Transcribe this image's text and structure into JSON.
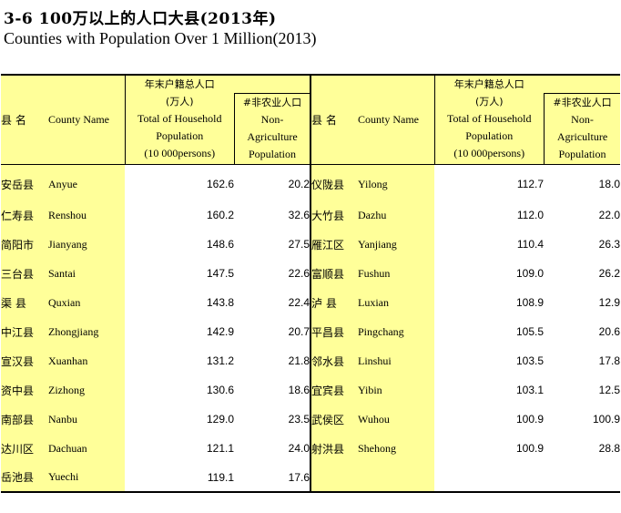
{
  "title": {
    "cn": "3-6  100万以上的人口大县(2013年)",
    "en": "Counties with Population Over 1 Million(2013)"
  },
  "header": {
    "county_cn": "县  名",
    "county_en": "County Name",
    "total_cn": "年末户籍总人口",
    "total_unit_cn": "(万人)",
    "total_en_1": "Total of Household",
    "total_en_2": "Population",
    "total_en_3": "(10 000persons)",
    "nonagri_cn": "#非农业人口",
    "nonagri_en_1": "Non-",
    "nonagri_en_2": "Agriculture",
    "nonagri_en_3": "Population"
  },
  "left_rows": [
    {
      "cn": "安岳县",
      "en": "Anyue",
      "total": "162.6",
      "nonagri": "20.2"
    },
    {
      "cn": "仁寿县",
      "en": "Renshou",
      "total": "160.2",
      "nonagri": "32.6"
    },
    {
      "cn": "简阳市",
      "en": "Jianyang",
      "total": "148.6",
      "nonagri": "27.5"
    },
    {
      "cn": "三台县",
      "en": "Santai",
      "total": "147.5",
      "nonagri": "22.6"
    },
    {
      "cn": "渠  县",
      "en": "Quxian",
      "total": "143.8",
      "nonagri": "22.4"
    },
    {
      "cn": "中江县",
      "en": "Zhongjiang",
      "total": "142.9",
      "nonagri": "20.7"
    },
    {
      "cn": "宣汉县",
      "en": "Xuanhan",
      "total": "131.2",
      "nonagri": "21.8"
    },
    {
      "cn": "资中县",
      "en": "Zizhong",
      "total": "130.6",
      "nonagri": "18.6"
    },
    {
      "cn": "南部县",
      "en": "Nanbu",
      "total": "129.0",
      "nonagri": "23.5"
    },
    {
      "cn": "达川区",
      "en": "Dachuan",
      "total": "121.1",
      "nonagri": "24.0"
    },
    {
      "cn": "岳池县",
      "en": "Yuechi",
      "total": "119.1",
      "nonagri": "17.6"
    }
  ],
  "right_rows": [
    {
      "cn": "仪陇县",
      "en": "Yilong",
      "total": "112.7",
      "nonagri": "18.0"
    },
    {
      "cn": "大竹县",
      "en": "Dazhu",
      "total": "112.0",
      "nonagri": "22.0"
    },
    {
      "cn": "雁江区",
      "en": "Yanjiang",
      "total": "110.4",
      "nonagri": "26.3"
    },
    {
      "cn": "富顺县",
      "en": "Fushun",
      "total": "109.0",
      "nonagri": "26.2"
    },
    {
      "cn": "泸  县",
      "en": "Luxian",
      "total": "108.9",
      "nonagri": "12.9"
    },
    {
      "cn": "平昌县",
      "en": "Pingchang",
      "total": "105.5",
      "nonagri": "20.6"
    },
    {
      "cn": "邻水县",
      "en": "Linshui",
      "total": "103.5",
      "nonagri": "17.8"
    },
    {
      "cn": "宜宾县",
      "en": "Yibin",
      "total": "103.1",
      "nonagri": "12.5"
    },
    {
      "cn": "武侯区",
      "en": "Wuhou",
      "total": "100.9",
      "nonagri": "100.9"
    },
    {
      "cn": "射洪县",
      "en": "Shehong",
      "total": "100.9",
      "nonagri": "28.8"
    },
    {
      "cn": "",
      "en": "",
      "total": "",
      "nonagri": ""
    }
  ],
  "colors": {
    "label_bg": "#ffff99",
    "border": "#000000"
  }
}
